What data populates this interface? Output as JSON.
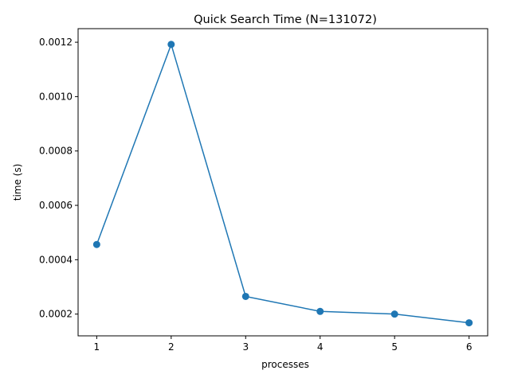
{
  "colors": {
    "series": "#1f77b4",
    "axis": "#000000",
    "background": "#ffffff"
  },
  "chart_data": {
    "type": "line",
    "title": "Quick Search Time (N=131072)",
    "xlabel": "processes",
    "ylabel": "time (s)",
    "grid": false,
    "legend": "none",
    "xlim": [
      0.75,
      6.25
    ],
    "ylim": [
      0.00012,
      0.00125
    ],
    "xticks": [
      1,
      2,
      3,
      4,
      5,
      6
    ],
    "xtick_labels": [
      "1",
      "2",
      "3",
      "4",
      "5",
      "6"
    ],
    "yticks": [
      0.0002,
      0.0004,
      0.0006,
      0.0008,
      0.001,
      0.0012
    ],
    "ytick_labels": [
      "0.0002",
      "0.0004",
      "0.0006",
      "0.0008",
      "0.0010",
      "0.0012"
    ],
    "series": [
      {
        "marker": "circle",
        "x": [
          1,
          2,
          3,
          4,
          5,
          6
        ],
        "y": [
          0.000456,
          0.001192,
          0.000265,
          0.00021,
          0.0002,
          0.000168
        ]
      }
    ]
  }
}
